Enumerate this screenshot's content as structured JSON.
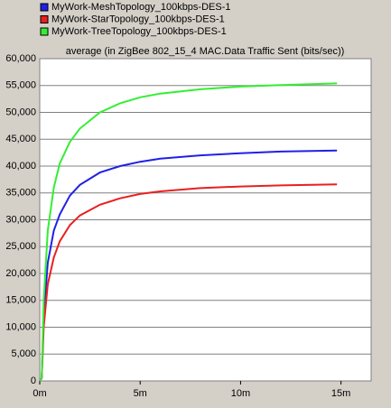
{
  "chart_data": {
    "type": "line",
    "title": "average (in ZigBee 802_15_4 MAC.Data Traffic Sent (bits/sec))",
    "x": [
      0,
      0.1,
      0.2,
      0.4,
      0.7,
      1,
      1.5,
      2,
      3,
      4,
      5,
      6,
      8,
      10,
      12,
      14.8
    ],
    "series": [
      {
        "name": "MyWork-MeshTopology_100kbps-DES-1",
        "color": "#2020e8",
        "values": [
          0,
          500,
          12000,
          22000,
          28000,
          31000,
          34500,
          36500,
          38800,
          40000,
          40800,
          41400,
          42000,
          42400,
          42700,
          42900
        ]
      },
      {
        "name": "MyWork-StarTopology_100kbps-DES-1",
        "color": "#e82020",
        "values": [
          0,
          500,
          10000,
          18000,
          23000,
          26000,
          29000,
          30800,
          32800,
          34000,
          34800,
          35300,
          35900,
          36200,
          36400,
          36600
        ]
      },
      {
        "name": "MyWork-TreeTopology_100kbps-DES-1",
        "color": "#33ee33",
        "values": [
          0,
          500,
          15000,
          28000,
          36000,
          40500,
          44500,
          47000,
          50000,
          51700,
          52800,
          53500,
          54300,
          54800,
          55100,
          55400
        ]
      }
    ],
    "xlim": [
      0,
      16.5
    ],
    "xticks": [
      {
        "value": 0,
        "label": "0m"
      },
      {
        "value": 5,
        "label": "5m"
      },
      {
        "value": 10,
        "label": "10m"
      },
      {
        "value": 15,
        "label": "15m"
      }
    ],
    "ylim": [
      0,
      60000
    ],
    "yticks": [
      0,
      {
        "value": 5000,
        "label": "5,000"
      },
      {
        "value": 10000,
        "label": "10,000"
      },
      {
        "value": 15000,
        "label": "15,000"
      },
      {
        "value": 20000,
        "label": "20,000"
      },
      {
        "value": 25000,
        "label": "25,000"
      },
      {
        "value": 30000,
        "label": "30,000"
      },
      {
        "value": 35000,
        "label": "35,000"
      },
      {
        "value": 40000,
        "label": "40,000"
      },
      {
        "value": 45000,
        "label": "45,000"
      },
      {
        "value": 50000,
        "label": "50,000"
      },
      {
        "value": 55000,
        "label": "55,000"
      },
      {
        "value": 60000,
        "label": "60,000"
      }
    ],
    "grid": true
  }
}
